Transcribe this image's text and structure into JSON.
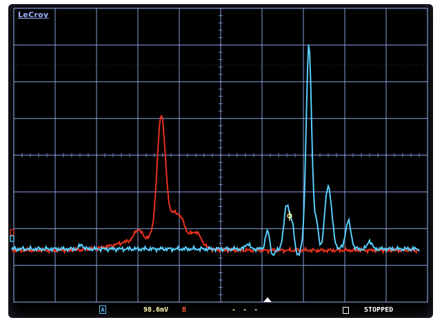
{
  "brand": {
    "logo": "LeCroy"
  },
  "status": {
    "channel_a_label": "A",
    "volts_per_div": "98.6mV",
    "channel_b_label": "B",
    "trigger_dashes": "- - -",
    "acquisition_state": "STOPPED"
  },
  "colors": {
    "screen_bg": "#000000",
    "grid": "#8fa6e8",
    "trace_a": "#5ad0ff",
    "trace_b": "#e8321e",
    "status_text": "#ffffff"
  },
  "icons": {
    "trigger_marker": "up-triangle-icon",
    "cursor_marker": "crosshair-icon",
    "run_stop_indicator": "square-icon"
  }
}
